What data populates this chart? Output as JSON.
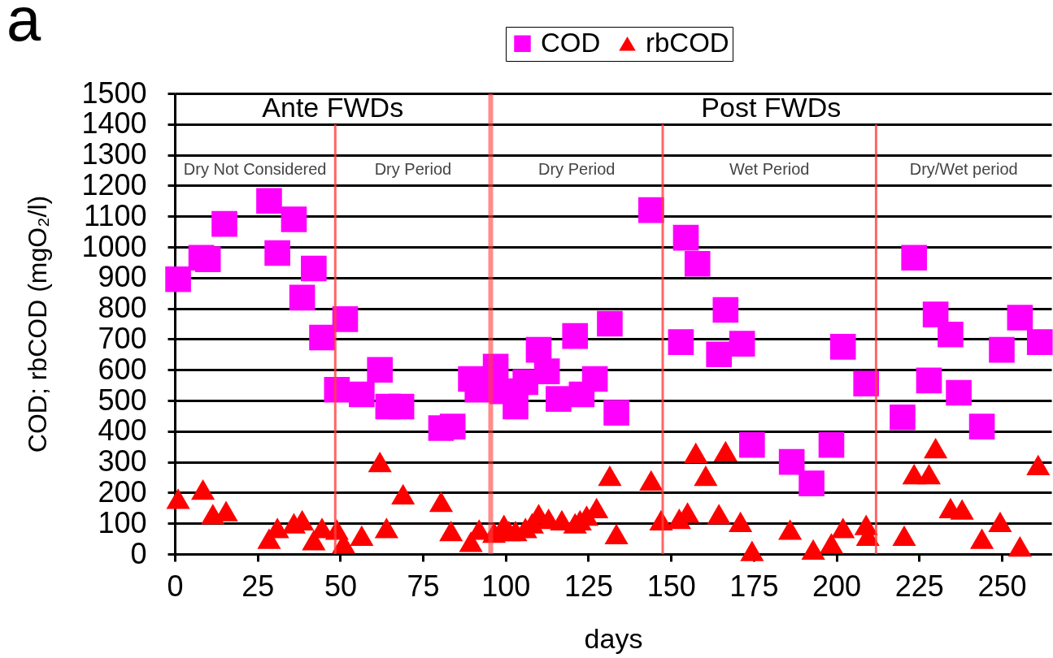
{
  "chart_data": {
    "type": "scatter",
    "title": "a",
    "xlabel": "days",
    "ylabel": "COD; rbCOD (mgO₂/l)",
    "xlim": [
      0,
      265
    ],
    "xticks": [
      0,
      25,
      50,
      75,
      100,
      125,
      150,
      175,
      200,
      225,
      250
    ],
    "ylim": [
      0,
      1500
    ],
    "yticks": [
      0,
      100,
      200,
      300,
      400,
      500,
      600,
      700,
      800,
      900,
      1000,
      1100,
      1200,
      1300,
      1400,
      1500
    ],
    "grid": "y",
    "legend": "top",
    "series": [
      {
        "name": "COD",
        "color": "#ff00ff",
        "marker": "square",
        "x": [
          1,
          8,
          10,
          15,
          28.5,
          31,
          36,
          38.5,
          42,
          44.5,
          49,
          51.5,
          56.5,
          62,
          64.5,
          68.5,
          80.5,
          84,
          89.5,
          91.5,
          97,
          99,
          103,
          106,
          110,
          112.5,
          116,
          121,
          123,
          127,
          131.5,
          133.5,
          144,
          153,
          154.5,
          158,
          164.5,
          166.5,
          171.5,
          174.5,
          186.5,
          192.5,
          198.5,
          202,
          209,
          220,
          223.5,
          228,
          230,
          234.5,
          237,
          244,
          250,
          255.5,
          261.5
        ],
        "values": [
          895,
          965,
          960,
          1075,
          1150,
          980,
          1090,
          835,
          930,
          705,
          535,
          765,
          520,
          600,
          480,
          480,
          410,
          415,
          570,
          535,
          610,
          530,
          480,
          560,
          665,
          595,
          505,
          710,
          520,
          570,
          750,
          460,
          1120,
          690,
          1030,
          945,
          650,
          795,
          685,
          355,
          300,
          230,
          355,
          675,
          555,
          445,
          965,
          565,
          780,
          715,
          525,
          415,
          665,
          770,
          690
        ]
      },
      {
        "name": "rbCOD",
        "color": "#ff0000",
        "marker": "triangle",
        "x": [
          1,
          8.5,
          11.5,
          15.5,
          28.5,
          31,
          36,
          38.5,
          42,
          44.5,
          49,
          51,
          56.5,
          62,
          64,
          69,
          80.5,
          83.5,
          89.5,
          92,
          96.5,
          99.5,
          101,
          103,
          106,
          108,
          110,
          113,
          117,
          121,
          122.5,
          124.5,
          127.5,
          131.5,
          133.5,
          144,
          147,
          152.5,
          155,
          157.5,
          160.5,
          164.5,
          166.5,
          171,
          174.5,
          186,
          193,
          198.5,
          202,
          209,
          209.5,
          220.5,
          223.5,
          228,
          230,
          234.5,
          238,
          244,
          249.5,
          255.5,
          261
        ],
        "values": [
          180,
          210,
          130,
          140,
          50,
          85,
          100,
          110,
          45,
          85,
          80,
          35,
          60,
          300,
          85,
          195,
          170,
          75,
          40,
          80,
          70,
          95,
          75,
          75,
          85,
          100,
          130,
          115,
          110,
          100,
          110,
          125,
          150,
          255,
          65,
          240,
          110,
          115,
          135,
          330,
          255,
          130,
          335,
          105,
          10,
          80,
          15,
          35,
          85,
          95,
          60,
          60,
          260,
          260,
          345,
          150,
          145,
          50,
          105,
          25,
          290
        ]
      }
    ],
    "ref_lines": [
      {
        "axis": "x",
        "value": 48.5,
        "color": "#ff4040"
      },
      {
        "axis": "x",
        "value": 95.5,
        "color": "#ff4040"
      },
      {
        "axis": "x",
        "value": 147.5,
        "color": "#ff4040"
      },
      {
        "axis": "x",
        "value": 212,
        "color": "#ff4040"
      }
    ],
    "annotations": [
      "Ante FWDs",
      "Post FWDs",
      "Dry Not Considered",
      "Dry Period",
      "Dry Period",
      "Wet Period",
      "Dry/Wet period"
    ]
  }
}
